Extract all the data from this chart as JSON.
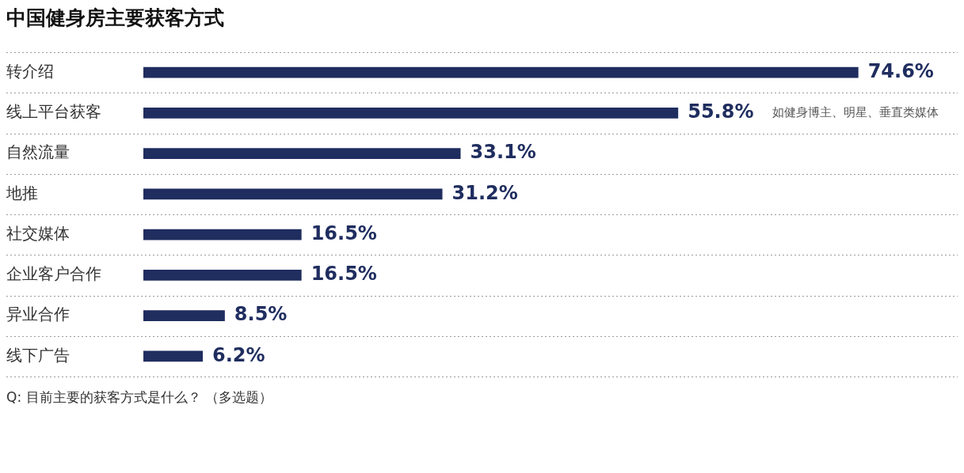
{
  "chart_data": {
    "type": "bar",
    "orientation": "horizontal",
    "title": "中国健身房主要获客方式",
    "categories": [
      "转介绍",
      "线上平台获客",
      "自然流量",
      "地推",
      "社交媒体",
      "企业客户合作",
      "异业合作",
      "线下广告"
    ],
    "values": [
      74.6,
      55.8,
      33.1,
      31.2,
      16.5,
      16.5,
      8.5,
      6.2
    ],
    "color": "#1f2d5f",
    "value_labels": [
      "74.6%",
      "55.8%",
      "33.1%",
      "31.2%",
      "16.5%",
      "16.5%",
      "8.5%",
      "6.2%"
    ],
    "grid": "y",
    "tick_labels": "y",
    "annotations": [
      "如健身博主、明星、垂直类媒体",
      "Q: 目前主要的获客方式是什么？ （多选题）"
    ]
  }
}
